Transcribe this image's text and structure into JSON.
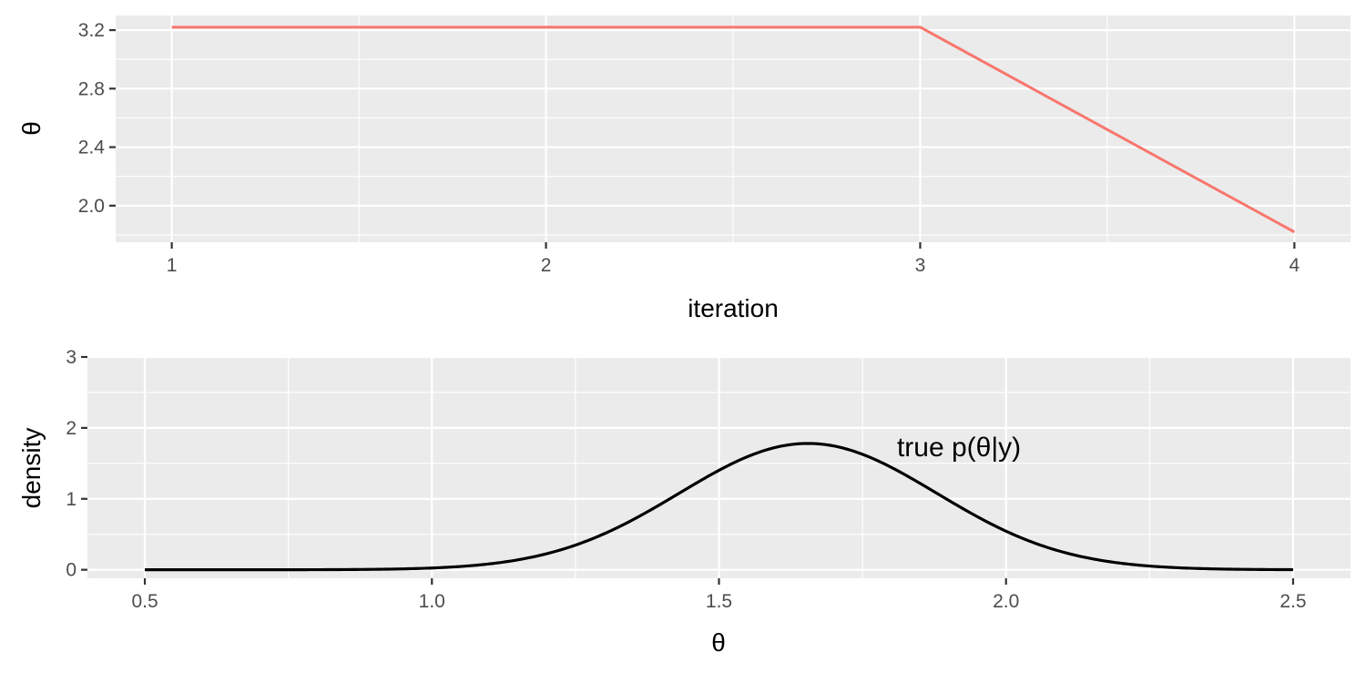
{
  "chart_data": [
    {
      "type": "line",
      "xlabel": "iteration",
      "ylabel": "θ",
      "xlim": [
        0.85,
        4.15
      ],
      "ylim": [
        1.75,
        3.3
      ],
      "x_ticks": [
        1,
        2,
        3,
        4
      ],
      "x_tick_labels": [
        "1",
        "2",
        "3",
        "4"
      ],
      "y_ticks": [
        2.0,
        2.4,
        2.8,
        3.2
      ],
      "y_tick_labels": [
        "2.0",
        "2.4",
        "2.8",
        "3.2"
      ],
      "grid": true,
      "series": [
        {
          "color": "#f8766d",
          "x": [
            1,
            2,
            3,
            4
          ],
          "y": [
            3.22,
            3.22,
            3.22,
            1.82
          ]
        }
      ]
    },
    {
      "type": "line",
      "xlabel": "θ",
      "ylabel": "density",
      "xlim": [
        0.4,
        2.6
      ],
      "ylim": [
        -0.12,
        3.0
      ],
      "x_ticks": [
        0.5,
        1.0,
        1.5,
        2.0,
        2.5
      ],
      "x_tick_labels": [
        "0.5",
        "1.0",
        "1.5",
        "2.0",
        "2.5"
      ],
      "y_ticks": [
        0,
        1,
        2,
        3
      ],
      "y_tick_labels": [
        "0",
        "1",
        "2",
        "3"
      ],
      "grid": true,
      "series": [
        {
          "color": "#000000",
          "distribution": "normal",
          "mean": 1.655,
          "sd": 0.224,
          "x_range": [
            0.5,
            2.5
          ]
        }
      ],
      "annotations": [
        {
          "text": "true p(θ|y)",
          "x": 1.81,
          "y": 1.6
        }
      ]
    }
  ]
}
